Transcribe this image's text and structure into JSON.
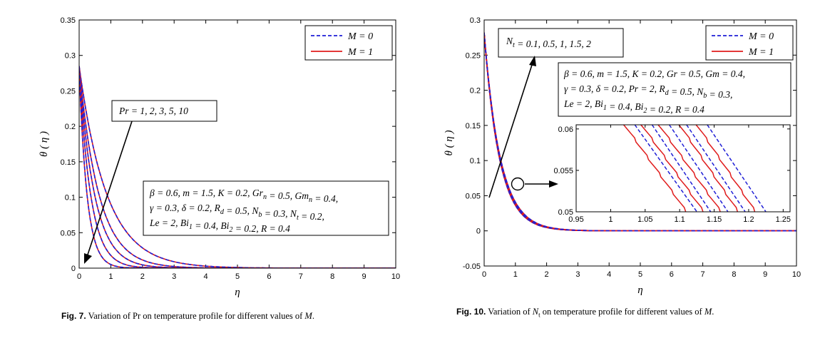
{
  "chart_data": [
    {
      "type": "line",
      "figure": "Fig. 7.",
      "caption": "Variation of Pr on temperature profile for different values of",
      "caption_var": "M",
      "xlabel": "η",
      "ylabel": "θ ( η )",
      "xlim": [
        0,
        10
      ],
      "ylim": [
        0,
        0.35
      ],
      "xticks": [
        0,
        1,
        2,
        3,
        4,
        5,
        6,
        7,
        8,
        9,
        10
      ],
      "yticks": [
        0,
        0.05,
        0.1,
        0.15,
        0.2,
        0.25,
        0.3,
        0.35
      ],
      "legend_position": "top-right",
      "legend": [
        {
          "label": "M = 0",
          "color": "#1f1fd6",
          "style": "dashed"
        },
        {
          "label": "M = 1",
          "color": "#e01b1b",
          "style": "solid"
        }
      ],
      "annotation_param": "Pr = 1, 2, 3, 5, 10",
      "annotation_params": [
        "β = 0.6, m = 1.5, K = 0.2, Gr_n = 0.5, Gm_n = 0.4,",
        "γ = 0.3, δ = 0.2, R_d = 0.5, N_b = 0.3, N_t = 0.2,",
        "Le = 2, Bi_1 = 0.4, Bi_2 = 0.2, R = 0.4"
      ],
      "curves": [
        {
          "param": "Pr = 1",
          "theta0": 0.285,
          "decay": 1.15
        },
        {
          "param": "Pr = 2",
          "theta0": 0.283,
          "decay": 1.6
        },
        {
          "param": "Pr = 3",
          "theta0": 0.282,
          "decay": 2.05
        },
        {
          "param": "Pr = 5",
          "theta0": 0.281,
          "decay": 2.75
        },
        {
          "param": "Pr = 10",
          "theta0": 0.28,
          "decay": 4.0
        }
      ]
    },
    {
      "type": "line",
      "figure": "Fig. 10.",
      "caption": "Variation of",
      "caption_sym": "N",
      "caption_sub": "t",
      "caption_rest": "on temperature profile for different values of",
      "caption_var": "M",
      "xlabel": "η",
      "ylabel": "θ ( η )",
      "xlim": [
        0,
        10
      ],
      "ylim": [
        -0.05,
        0.3
      ],
      "xticks": [
        0,
        1,
        2,
        3,
        4,
        5,
        6,
        7,
        8,
        9,
        10
      ],
      "yticks": [
        -0.05,
        0,
        0.05,
        0.1,
        0.15,
        0.2,
        0.25,
        0.3
      ],
      "legend_position": "top-right",
      "legend": [
        {
          "label": "M = 0",
          "color": "#1f1fd6",
          "style": "dashed"
        },
        {
          "label": "M = 1",
          "color": "#e01b1b",
          "style": "solid"
        }
      ],
      "annotation_param": "N_t = 0.1, 0.5, 1, 1.5, 2",
      "annotation_params": [
        "β = 0.6, m = 1.5, K = 0.2, Gr = 0.5, Gm = 0.4,",
        "γ = 0.3, δ = 0.2, Pr = 2, R_d = 0.5, N_b = 0.3,",
        "Le = 2, Bi_1 = 0.4, Bi_2 = 0.2, R = 0.4"
      ],
      "curves": [
        {
          "param": "N_t = 0.1",
          "theta0": 0.281,
          "decay": 2.05
        },
        {
          "param": "N_t = 0.5",
          "theta0": 0.281,
          "decay": 2.02
        },
        {
          "param": "N_t = 1",
          "theta0": 0.281,
          "decay": 1.99
        },
        {
          "param": "N_t = 1.5",
          "theta0": 0.282,
          "decay": 1.96
        },
        {
          "param": "N_t = 2",
          "theta0": 0.282,
          "decay": 1.93
        }
      ],
      "inset": {
        "xlim": [
          0.95,
          1.26
        ],
        "ylim": [
          0.05,
          0.0605
        ],
        "xticks": [
          0.95,
          1,
          1.05,
          1.1,
          1.15,
          1.2,
          1.25
        ],
        "yticks": [
          0.05,
          0.055,
          0.06
        ],
        "lines": [
          {
            "color": "#e01b1b",
            "style": "solid",
            "x_top": 1.02,
            "x_bottom": 1.11
          },
          {
            "color": "#1f1fd6",
            "style": "dashed",
            "x_top": 1.035,
            "x_bottom": 1.125
          },
          {
            "color": "#e01b1b",
            "style": "solid",
            "x_top": 1.045,
            "x_bottom": 1.135
          },
          {
            "color": "#1f1fd6",
            "style": "dashed",
            "x_top": 1.06,
            "x_bottom": 1.145
          },
          {
            "color": "#e01b1b",
            "style": "solid",
            "x_top": 1.07,
            "x_bottom": 1.16
          },
          {
            "color": "#1f1fd6",
            "style": "dashed",
            "x_top": 1.085,
            "x_bottom": 1.17
          },
          {
            "color": "#e01b1b",
            "style": "solid",
            "x_top": 1.1,
            "x_bottom": 1.185
          },
          {
            "color": "#1f1fd6",
            "style": "dashed",
            "x_top": 1.11,
            "x_bottom": 1.195
          },
          {
            "color": "#e01b1b",
            "style": "solid",
            "x_top": 1.125,
            "x_bottom": 1.21
          },
          {
            "color": "#1f1fd6",
            "style": "dashed",
            "x_top": 1.14,
            "x_bottom": 1.225
          }
        ]
      }
    }
  ]
}
